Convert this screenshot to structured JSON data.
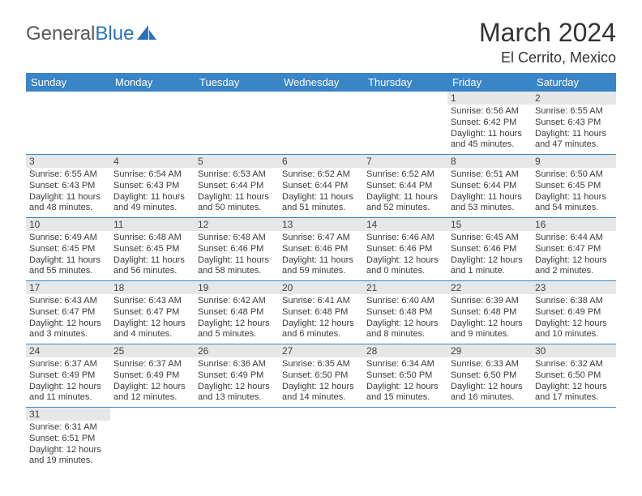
{
  "brand": {
    "part1": "General",
    "part2": "Blue",
    "text_color": "#585858",
    "accent_color": "#2a73b8"
  },
  "title": "March 2024",
  "location": "El Cerrito, Mexico",
  "colors": {
    "header_bg": "#3a85c6",
    "header_text": "#ffffff",
    "daynum_bg": "#e7e7e7",
    "cell_text": "#3b3b3b",
    "border": "#3a85c6",
    "page_bg": "#ffffff"
  },
  "weekdays": [
    "Sunday",
    "Monday",
    "Tuesday",
    "Wednesday",
    "Thursday",
    "Friday",
    "Saturday"
  ],
  "weeks": [
    [
      null,
      null,
      null,
      null,
      null,
      {
        "day": "1",
        "sunrise": "Sunrise: 6:56 AM",
        "sunset": "Sunset: 6:42 PM",
        "daylight1": "Daylight: 11 hours",
        "daylight2": "and 45 minutes."
      },
      {
        "day": "2",
        "sunrise": "Sunrise: 6:55 AM",
        "sunset": "Sunset: 6:43 PM",
        "daylight1": "Daylight: 11 hours",
        "daylight2": "and 47 minutes."
      }
    ],
    [
      {
        "day": "3",
        "sunrise": "Sunrise: 6:55 AM",
        "sunset": "Sunset: 6:43 PM",
        "daylight1": "Daylight: 11 hours",
        "daylight2": "and 48 minutes."
      },
      {
        "day": "4",
        "sunrise": "Sunrise: 6:54 AM",
        "sunset": "Sunset: 6:43 PM",
        "daylight1": "Daylight: 11 hours",
        "daylight2": "and 49 minutes."
      },
      {
        "day": "5",
        "sunrise": "Sunrise: 6:53 AM",
        "sunset": "Sunset: 6:44 PM",
        "daylight1": "Daylight: 11 hours",
        "daylight2": "and 50 minutes."
      },
      {
        "day": "6",
        "sunrise": "Sunrise: 6:52 AM",
        "sunset": "Sunset: 6:44 PM",
        "daylight1": "Daylight: 11 hours",
        "daylight2": "and 51 minutes."
      },
      {
        "day": "7",
        "sunrise": "Sunrise: 6:52 AM",
        "sunset": "Sunset: 6:44 PM",
        "daylight1": "Daylight: 11 hours",
        "daylight2": "and 52 minutes."
      },
      {
        "day": "8",
        "sunrise": "Sunrise: 6:51 AM",
        "sunset": "Sunset: 6:44 PM",
        "daylight1": "Daylight: 11 hours",
        "daylight2": "and 53 minutes."
      },
      {
        "day": "9",
        "sunrise": "Sunrise: 6:50 AM",
        "sunset": "Sunset: 6:45 PM",
        "daylight1": "Daylight: 11 hours",
        "daylight2": "and 54 minutes."
      }
    ],
    [
      {
        "day": "10",
        "sunrise": "Sunrise: 6:49 AM",
        "sunset": "Sunset: 6:45 PM",
        "daylight1": "Daylight: 11 hours",
        "daylight2": "and 55 minutes."
      },
      {
        "day": "11",
        "sunrise": "Sunrise: 6:48 AM",
        "sunset": "Sunset: 6:45 PM",
        "daylight1": "Daylight: 11 hours",
        "daylight2": "and 56 minutes."
      },
      {
        "day": "12",
        "sunrise": "Sunrise: 6:48 AM",
        "sunset": "Sunset: 6:46 PM",
        "daylight1": "Daylight: 11 hours",
        "daylight2": "and 58 minutes."
      },
      {
        "day": "13",
        "sunrise": "Sunrise: 6:47 AM",
        "sunset": "Sunset: 6:46 PM",
        "daylight1": "Daylight: 11 hours",
        "daylight2": "and 59 minutes."
      },
      {
        "day": "14",
        "sunrise": "Sunrise: 6:46 AM",
        "sunset": "Sunset: 6:46 PM",
        "daylight1": "Daylight: 12 hours",
        "daylight2": "and 0 minutes."
      },
      {
        "day": "15",
        "sunrise": "Sunrise: 6:45 AM",
        "sunset": "Sunset: 6:46 PM",
        "daylight1": "Daylight: 12 hours",
        "daylight2": "and 1 minute."
      },
      {
        "day": "16",
        "sunrise": "Sunrise: 6:44 AM",
        "sunset": "Sunset: 6:47 PM",
        "daylight1": "Daylight: 12 hours",
        "daylight2": "and 2 minutes."
      }
    ],
    [
      {
        "day": "17",
        "sunrise": "Sunrise: 6:43 AM",
        "sunset": "Sunset: 6:47 PM",
        "daylight1": "Daylight: 12 hours",
        "daylight2": "and 3 minutes."
      },
      {
        "day": "18",
        "sunrise": "Sunrise: 6:43 AM",
        "sunset": "Sunset: 6:47 PM",
        "daylight1": "Daylight: 12 hours",
        "daylight2": "and 4 minutes."
      },
      {
        "day": "19",
        "sunrise": "Sunrise: 6:42 AM",
        "sunset": "Sunset: 6:48 PM",
        "daylight1": "Daylight: 12 hours",
        "daylight2": "and 5 minutes."
      },
      {
        "day": "20",
        "sunrise": "Sunrise: 6:41 AM",
        "sunset": "Sunset: 6:48 PM",
        "daylight1": "Daylight: 12 hours",
        "daylight2": "and 6 minutes."
      },
      {
        "day": "21",
        "sunrise": "Sunrise: 6:40 AM",
        "sunset": "Sunset: 6:48 PM",
        "daylight1": "Daylight: 12 hours",
        "daylight2": "and 8 minutes."
      },
      {
        "day": "22",
        "sunrise": "Sunrise: 6:39 AM",
        "sunset": "Sunset: 6:48 PM",
        "daylight1": "Daylight: 12 hours",
        "daylight2": "and 9 minutes."
      },
      {
        "day": "23",
        "sunrise": "Sunrise: 6:38 AM",
        "sunset": "Sunset: 6:49 PM",
        "daylight1": "Daylight: 12 hours",
        "daylight2": "and 10 minutes."
      }
    ],
    [
      {
        "day": "24",
        "sunrise": "Sunrise: 6:37 AM",
        "sunset": "Sunset: 6:49 PM",
        "daylight1": "Daylight: 12 hours",
        "daylight2": "and 11 minutes."
      },
      {
        "day": "25",
        "sunrise": "Sunrise: 6:37 AM",
        "sunset": "Sunset: 6:49 PM",
        "daylight1": "Daylight: 12 hours",
        "daylight2": "and 12 minutes."
      },
      {
        "day": "26",
        "sunrise": "Sunrise: 6:36 AM",
        "sunset": "Sunset: 6:49 PM",
        "daylight1": "Daylight: 12 hours",
        "daylight2": "and 13 minutes."
      },
      {
        "day": "27",
        "sunrise": "Sunrise: 6:35 AM",
        "sunset": "Sunset: 6:50 PM",
        "daylight1": "Daylight: 12 hours",
        "daylight2": "and 14 minutes."
      },
      {
        "day": "28",
        "sunrise": "Sunrise: 6:34 AM",
        "sunset": "Sunset: 6:50 PM",
        "daylight1": "Daylight: 12 hours",
        "daylight2": "and 15 minutes."
      },
      {
        "day": "29",
        "sunrise": "Sunrise: 6:33 AM",
        "sunset": "Sunset: 6:50 PM",
        "daylight1": "Daylight: 12 hours",
        "daylight2": "and 16 minutes."
      },
      {
        "day": "30",
        "sunrise": "Sunrise: 6:32 AM",
        "sunset": "Sunset: 6:50 PM",
        "daylight1": "Daylight: 12 hours",
        "daylight2": "and 17 minutes."
      }
    ],
    [
      {
        "day": "31",
        "sunrise": "Sunrise: 6:31 AM",
        "sunset": "Sunset: 6:51 PM",
        "daylight1": "Daylight: 12 hours",
        "daylight2": "and 19 minutes."
      },
      null,
      null,
      null,
      null,
      null,
      null
    ]
  ]
}
